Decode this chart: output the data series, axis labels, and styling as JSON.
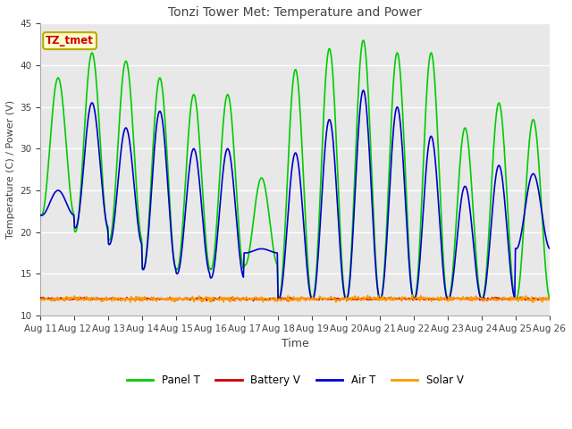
{
  "title": "Tonzi Tower Met: Temperature and Power",
  "xlabel": "Time",
  "ylabel": "Temperature (C) / Power (V)",
  "annotation": "TZ_tmet",
  "annotation_color": "#cc0000",
  "annotation_bg": "#ffffcc",
  "annotation_border": "#bbaa00",
  "ylim": [
    10,
    45
  ],
  "yticks": [
    10,
    15,
    20,
    25,
    30,
    35,
    40,
    45
  ],
  "bg_color": "#e8e8e8",
  "fig_bg_color": "#ffffff",
  "grid_color": "#ffffff",
  "n_days": 15,
  "panel_t_peaks": [
    38.5,
    41.5,
    40.5,
    38.5,
    36.5,
    36.5,
    26.5,
    39.5,
    42.0,
    43.0,
    41.5,
    41.5,
    32.5,
    35.5,
    33.5
  ],
  "panel_t_troughs": [
    22.0,
    20.0,
    19.0,
    15.5,
    15.5,
    15.5,
    16.0,
    12.0,
    12.0,
    12.0,
    12.0,
    12.0,
    12.0,
    12.0,
    12.0
  ],
  "air_t_peaks": [
    25.0,
    35.5,
    32.5,
    34.5,
    30.0,
    30.0,
    18.0,
    29.5,
    33.5,
    37.0,
    35.0,
    31.5,
    25.5,
    28.0,
    27.0
  ],
  "air_t_troughs": [
    22.0,
    20.5,
    18.5,
    15.5,
    15.0,
    14.5,
    17.5,
    12.0,
    12.0,
    12.0,
    12.0,
    12.0,
    12.0,
    12.0,
    18.0
  ],
  "battery_v": 12.0,
  "solar_v": 12.0,
  "solar_noise": 0.15,
  "battery_noise": 0.08,
  "line_colors": {
    "panel_t": "#00cc00",
    "battery_v": "#cc0000",
    "air_t": "#0000cc",
    "solar_v": "#ff9900"
  },
  "line_widths": {
    "panel_t": 1.2,
    "battery_v": 1.2,
    "air_t": 1.2,
    "solar_v": 1.2
  },
  "xtick_labels": [
    "Aug 11",
    "Aug 12",
    "Aug 13",
    "Aug 14",
    "Aug 15",
    "Aug 16",
    "Aug 17",
    "Aug 18",
    "Aug 19",
    "Aug 20",
    "Aug 21",
    "Aug 22",
    "Aug 23",
    "Aug 24",
    "Aug 25",
    "Aug 26"
  ],
  "legend_labels": [
    "Panel T",
    "Battery V",
    "Air T",
    "Solar V"
  ],
  "legend_colors": [
    "#00cc00",
    "#cc0000",
    "#0000cc",
    "#ff9900"
  ],
  "figsize": [
    6.4,
    4.8
  ],
  "dpi": 100
}
